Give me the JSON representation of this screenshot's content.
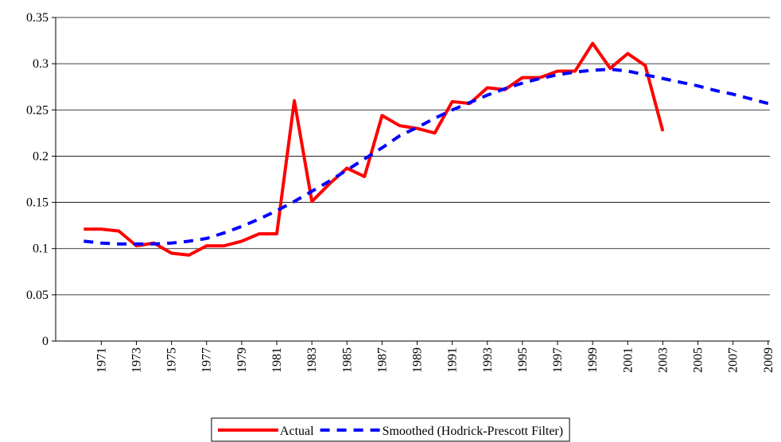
{
  "chart_data": {
    "type": "line",
    "x": [
      1970,
      1971,
      1972,
      1973,
      1974,
      1975,
      1976,
      1977,
      1978,
      1979,
      1980,
      1981,
      1982,
      1983,
      1984,
      1985,
      1986,
      1987,
      1988,
      1989,
      1990,
      1991,
      1992,
      1993,
      1994,
      1995,
      1996,
      1997,
      1998,
      1999,
      2000,
      2001,
      2002,
      2003,
      2004,
      2005,
      2006,
      2007,
      2008,
      2009
    ],
    "series": [
      {
        "name": "Actual",
        "color": "#ff0000",
        "dash": false,
        "values": [
          0.121,
          0.121,
          0.119,
          0.103,
          0.106,
          0.095,
          0.093,
          0.103,
          0.103,
          0.108,
          0.116,
          0.116,
          0.26,
          0.151,
          0.17,
          0.187,
          0.178,
          0.244,
          0.233,
          0.23,
          0.225,
          0.259,
          0.257,
          0.274,
          0.272,
          0.285,
          0.285,
          0.292,
          0.292,
          0.322,
          0.295,
          0.311,
          0.298,
          0.227,
          null,
          null,
          null,
          null,
          null,
          null
        ]
      },
      {
        "name": "Smoothed (Hodrick-Prescott Filter)",
        "color": "#0000ff",
        "dash": true,
        "values": [
          0.108,
          0.106,
          0.105,
          0.105,
          0.105,
          0.106,
          0.108,
          0.111,
          0.117,
          0.124,
          0.132,
          0.141,
          0.151,
          0.162,
          0.173,
          0.185,
          0.197,
          0.209,
          0.222,
          0.231,
          0.241,
          0.25,
          0.258,
          0.266,
          0.273,
          0.279,
          0.284,
          0.288,
          0.291,
          0.293,
          0.294,
          0.292,
          0.288,
          0.284,
          0.28,
          0.276,
          0.271,
          0.267,
          0.262,
          0.257
        ]
      }
    ],
    "xlim": [
      1968.4,
      2009.1
    ],
    "xticks": [
      1971,
      1973,
      1975,
      1977,
      1979,
      1981,
      1983,
      1985,
      1987,
      1989,
      1991,
      1993,
      1995,
      1997,
      1999,
      2001,
      2003,
      2005,
      2007,
      2009
    ],
    "ylim": [
      0,
      0.35
    ],
    "yticks": [
      0,
      0.05,
      0.1,
      0.15,
      0.2,
      0.25,
      0.3,
      0.35
    ],
    "grid": true,
    "legend": "bottom"
  }
}
